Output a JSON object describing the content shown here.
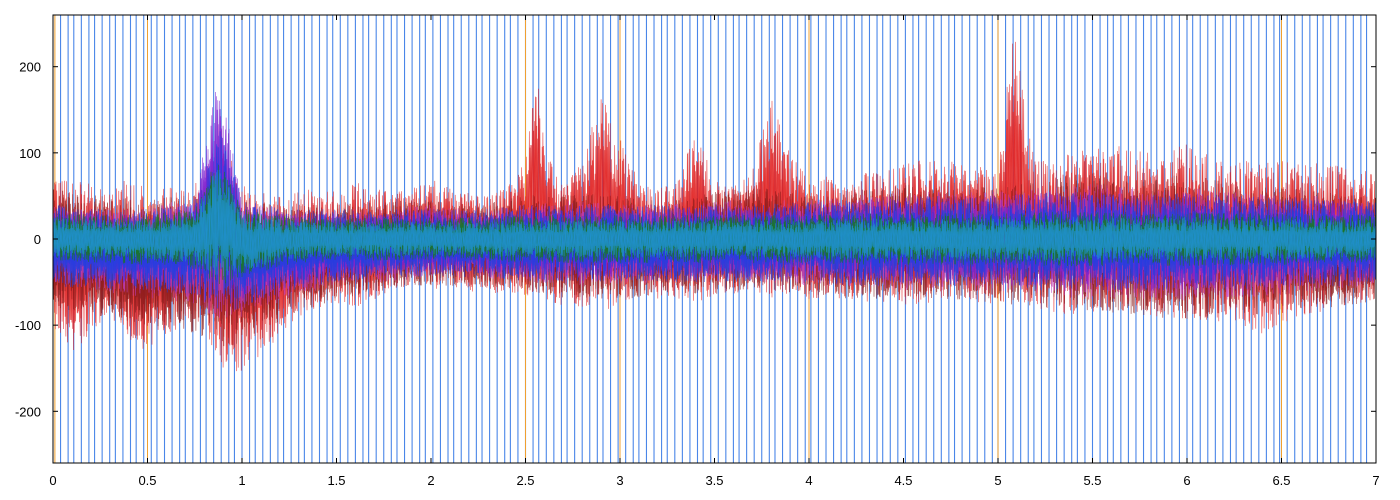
{
  "chart_data": {
    "type": "line",
    "title": "",
    "xlabel": "",
    "ylabel": "",
    "xlim": [
      0,
      7
    ],
    "ylim": [
      -260,
      260
    ],
    "x_ticks": [
      {
        "value": 0,
        "label": "0"
      },
      {
        "value": 0.5,
        "label": "0.5"
      },
      {
        "value": 1,
        "label": "1"
      },
      {
        "value": 1.5,
        "label": "1.5"
      },
      {
        "value": 2,
        "label": "2"
      },
      {
        "value": 2.5,
        "label": "2.5"
      },
      {
        "value": 3,
        "label": "3"
      },
      {
        "value": 3.5,
        "label": "3.5"
      },
      {
        "value": 4,
        "label": "4"
      },
      {
        "value": 4.5,
        "label": "4.5"
      },
      {
        "value": 5,
        "label": "5"
      },
      {
        "value": 5.5,
        "label": "5.5"
      },
      {
        "value": 6,
        "label": "6"
      },
      {
        "value": 6.5,
        "label": "6.5"
      },
      {
        "value": 7,
        "label": "7"
      }
    ],
    "y_ticks": [
      {
        "value": 200,
        "label": "200"
      },
      {
        "value": 100,
        "label": "100"
      },
      {
        "value": 0,
        "label": "0"
      },
      {
        "value": -100,
        "label": "-100"
      },
      {
        "value": -200,
        "label": "-200"
      }
    ],
    "grid": false,
    "legend": "none",
    "event_markers": {
      "blue": [
        0.04,
        0.08,
        0.11,
        0.15,
        0.19,
        0.22,
        0.26,
        0.3,
        0.33,
        0.37,
        0.41,
        0.44,
        0.48,
        0.52,
        0.55,
        0.59,
        0.63,
        0.67,
        0.7,
        0.74,
        0.78,
        0.81,
        0.85,
        0.89,
        0.93,
        0.96,
        1.0,
        1.04,
        1.07,
        1.11,
        1.15,
        1.19,
        1.22,
        1.26,
        1.3,
        1.33,
        1.37,
        1.41,
        1.45,
        1.48,
        1.52,
        1.56,
        1.6,
        1.64,
        1.67,
        1.71,
        1.75,
        1.79,
        1.82,
        1.86,
        1.9,
        1.94,
        1.97,
        2.01,
        2.05,
        2.09,
        2.12,
        2.16,
        2.2,
        2.24,
        2.27,
        2.31,
        2.35,
        2.39,
        2.42,
        2.46,
        2.5,
        2.54,
        2.57,
        2.61,
        2.65,
        2.69,
        2.72,
        2.76,
        2.8,
        2.84,
        2.88,
        2.91,
        2.95,
        2.99,
        3.03,
        3.07,
        3.1,
        3.14,
        3.18,
        3.22,
        3.25,
        3.29,
        3.33,
        3.37,
        3.41,
        3.44,
        3.48,
        3.52,
        3.56,
        3.6,
        3.63,
        3.67,
        3.71,
        3.75,
        3.79,
        3.82,
        3.86,
        3.9,
        3.94,
        3.98,
        4.01,
        4.05,
        4.09,
        4.13,
        4.17,
        4.2,
        4.24,
        4.28,
        4.32,
        4.36,
        4.39,
        4.43,
        4.47,
        4.51,
        4.55,
        4.58,
        4.62,
        4.66,
        4.7,
        4.74,
        4.77,
        4.81,
        4.85,
        4.89,
        4.93,
        4.97,
        5.0,
        5.04,
        5.08,
        5.12,
        5.16,
        5.19,
        5.23,
        5.27,
        5.31,
        5.35,
        5.39,
        5.42,
        5.46,
        5.5,
        5.54,
        5.58,
        5.61,
        5.65,
        5.69,
        5.73,
        5.77,
        5.81,
        5.84,
        5.88,
        5.92,
        5.96,
        6.0,
        6.03,
        6.07,
        6.11,
        6.15,
        6.19,
        6.23,
        6.26,
        6.3,
        6.34,
        6.38,
        6.42,
        6.46,
        6.49,
        6.53,
        6.57,
        6.61,
        6.65,
        6.69,
        6.72,
        6.76,
        6.8,
        6.84,
        6.88,
        6.92,
        6.95
      ],
      "orange": [
        0.01,
        0.5,
        2.5,
        3.0,
        4.0,
        5.0,
        6.5,
        7.0
      ]
    },
    "series": [
      {
        "color": "#e02020",
        "x": [
          0,
          0.1,
          0.2,
          0.3,
          0.4,
          0.5,
          0.6,
          0.7,
          0.8,
          0.9,
          1.0,
          1.1,
          1.2,
          1.3,
          1.4,
          1.5,
          1.6,
          1.7,
          1.8,
          1.9,
          2.0,
          2.1,
          2.2,
          2.3,
          2.4,
          2.5,
          2.55,
          2.6,
          2.7,
          2.8,
          2.9,
          3.0,
          3.1,
          3.2,
          3.3,
          3.4,
          3.5,
          3.6,
          3.7,
          3.8,
          3.9,
          4.0,
          4.2,
          4.4,
          4.6,
          4.8,
          5.0,
          5.08,
          5.2,
          5.4,
          5.6,
          5.8,
          6.0,
          6.2,
          6.4,
          6.6,
          6.8,
          7.0
        ],
        "y_max": [
          90,
          70,
          65,
          60,
          70,
          60,
          60,
          60,
          70,
          120,
          70,
          55,
          50,
          55,
          60,
          55,
          70,
          60,
          55,
          60,
          70,
          60,
          55,
          50,
          60,
          90,
          220,
          110,
          60,
          90,
          170,
          120,
          70,
          60,
          65,
          130,
          70,
          60,
          80,
          165,
          100,
          70,
          75,
          80,
          95,
          90,
          80,
          250,
          90,
          100,
          110,
          100,
          110,
          90,
          95,
          90,
          85,
          80
        ],
        "y_min": [
          -100,
          -140,
          -110,
          -90,
          -120,
          -130,
          -120,
          -90,
          -110,
          -150,
          -160,
          -140,
          -110,
          -90,
          -80,
          -75,
          -80,
          -70,
          -60,
          -55,
          -60,
          -55,
          -60,
          -65,
          -60,
          -70,
          -60,
          -70,
          -80,
          -85,
          -90,
          -80,
          -70,
          -70,
          -70,
          -75,
          -70,
          -65,
          -60,
          -70,
          -65,
          -70,
          -70,
          -80,
          -75,
          -70,
          -80,
          -70,
          -80,
          -90,
          -85,
          -90,
          -100,
          -95,
          -110,
          -90,
          -80,
          -70
        ]
      },
      {
        "color": "#8a1c1c",
        "x": [
          0,
          0.25,
          0.5,
          0.75,
          0.9,
          1.0,
          1.25,
          1.5,
          1.75,
          2.0,
          2.25,
          2.5,
          2.75,
          3.0,
          3.25,
          3.5,
          3.75,
          4.0,
          4.25,
          4.5,
          4.75,
          5.0,
          5.25,
          5.5,
          5.75,
          6.0,
          6.25,
          6.5,
          6.75,
          7.0
        ],
        "y_max": [
          60,
          50,
          45,
          55,
          80,
          45,
          40,
          40,
          45,
          45,
          40,
          50,
          55,
          50,
          45,
          55,
          60,
          50,
          55,
          65,
          60,
          60,
          70,
          80,
          70,
          75,
          65,
          60,
          55,
          50
        ],
        "y_min": [
          -80,
          -90,
          -100,
          -110,
          -130,
          -120,
          -90,
          -70,
          -60,
          -55,
          -55,
          -60,
          -70,
          -70,
          -65,
          -65,
          -60,
          -65,
          -70,
          -70,
          -70,
          -75,
          -80,
          -85,
          -90,
          -95,
          -90,
          -85,
          -80,
          -75
        ]
      },
      {
        "color": "#c040c0",
        "x": [
          0,
          0.25,
          0.5,
          0.75,
          0.88,
          1.0,
          1.25,
          1.5,
          1.75,
          2.0,
          2.25,
          2.5,
          2.75,
          3.0,
          3.25,
          3.5,
          3.75,
          4.0,
          4.25,
          4.5,
          4.75,
          5.0,
          5.25,
          5.5,
          5.75,
          6.0,
          6.25,
          6.5,
          6.75,
          7.0
        ],
        "y_max": [
          40,
          35,
          35,
          50,
          150,
          45,
          35,
          35,
          35,
          40,
          35,
          40,
          45,
          40,
          40,
          45,
          45,
          45,
          50,
          55,
          55,
          55,
          60,
          65,
          60,
          60,
          55,
          50,
          50,
          45
        ],
        "y_min": [
          -50,
          -60,
          -70,
          -75,
          -100,
          -90,
          -70,
          -55,
          -50,
          -45,
          -45,
          -50,
          -55,
          -55,
          -50,
          -50,
          -50,
          -55,
          -55,
          -60,
          -60,
          -60,
          -65,
          -70,
          -70,
          -75,
          -70,
          -65,
          -60,
          -55
        ]
      },
      {
        "color": "#7a20d0",
        "x": [
          0,
          0.25,
          0.5,
          0.75,
          0.88,
          1.0,
          1.25,
          1.5,
          1.75,
          2.0,
          2.25,
          2.5,
          2.75,
          3.0,
          3.25,
          3.5,
          3.75,
          4.0,
          4.25,
          4.5,
          4.75,
          5.0,
          5.25,
          5.5,
          5.75,
          6.0,
          6.25,
          6.5,
          6.75,
          7.0
        ],
        "y_max": [
          35,
          30,
          30,
          45,
          200,
          40,
          30,
          30,
          30,
          35,
          30,
          35,
          40,
          35,
          35,
          40,
          40,
          40,
          45,
          50,
          50,
          50,
          55,
          55,
          50,
          55,
          50,
          45,
          45,
          40
        ],
        "y_min": [
          -40,
          -50,
          -55,
          -60,
          -80,
          -70,
          -55,
          -45,
          -40,
          -40,
          -40,
          -45,
          -45,
          -45,
          -45,
          -45,
          -45,
          -45,
          -50,
          -50,
          -50,
          -55,
          -55,
          -60,
          -60,
          -60,
          -55,
          -55,
          -50,
          -50
        ]
      },
      {
        "color": "#2040e0",
        "x": [
          0,
          0.25,
          0.5,
          0.75,
          0.88,
          1.0,
          1.25,
          1.5,
          1.75,
          2.0,
          2.25,
          2.5,
          2.75,
          3.0,
          3.25,
          3.5,
          3.75,
          4.0,
          4.25,
          4.5,
          4.75,
          5.0,
          5.25,
          5.5,
          5.75,
          6.0,
          6.25,
          6.5,
          6.75,
          7.0
        ],
        "y_max": [
          40,
          35,
          35,
          45,
          130,
          45,
          35,
          35,
          35,
          35,
          35,
          40,
          40,
          40,
          40,
          40,
          40,
          45,
          45,
          50,
          50,
          50,
          55,
          55,
          50,
          55,
          50,
          50,
          45,
          45
        ],
        "y_min": [
          -55,
          -60,
          -60,
          -65,
          -90,
          -80,
          -60,
          -50,
          -45,
          -45,
          -45,
          -50,
          -50,
          -50,
          -50,
          -50,
          -50,
          -50,
          -55,
          -55,
          -55,
          -55,
          -60,
          -60,
          -60,
          -60,
          -60,
          -55,
          -55,
          -55
        ]
      },
      {
        "color": "#1a7a1a",
        "x": [
          0,
          0.25,
          0.5,
          0.75,
          0.88,
          1.0,
          1.25,
          1.5,
          1.75,
          2.0,
          2.25,
          2.5,
          2.75,
          3.0,
          3.25,
          3.5,
          3.75,
          4.0,
          4.25,
          4.5,
          4.75,
          5.0,
          5.25,
          5.5,
          5.75,
          6.0,
          6.25,
          6.5,
          6.75,
          7.0
        ],
        "y_max": [
          30,
          28,
          28,
          35,
          100,
          35,
          28,
          25,
          25,
          25,
          25,
          28,
          28,
          28,
          28,
          28,
          28,
          28,
          30,
          30,
          30,
          30,
          32,
          32,
          30,
          32,
          30,
          30,
          28,
          28
        ],
        "y_min": [
          -25,
          -28,
          -30,
          -35,
          -55,
          -45,
          -30,
          -25,
          -25,
          -25,
          -25,
          -28,
          -28,
          -28,
          -28,
          -28,
          -28,
          -28,
          -30,
          -30,
          -30,
          -30,
          -32,
          -32,
          -30,
          -32,
          -30,
          -30,
          -28,
          -28
        ]
      },
      {
        "color": "#2090d0",
        "x": [
          0,
          0.25,
          0.5,
          0.75,
          0.88,
          1.0,
          1.25,
          1.5,
          1.75,
          2.0,
          2.25,
          2.5,
          2.75,
          3.0,
          3.25,
          3.5,
          3.75,
          4.0,
          4.25,
          4.5,
          4.75,
          5.0,
          5.25,
          5.5,
          5.75,
          6.0,
          6.25,
          6.5,
          6.75,
          7.0
        ],
        "y_max": [
          25,
          22,
          22,
          30,
          90,
          30,
          22,
          20,
          20,
          20,
          20,
          22,
          22,
          22,
          22,
          22,
          22,
          22,
          24,
          24,
          24,
          24,
          26,
          26,
          24,
          26,
          24,
          24,
          22,
          22
        ],
        "y_min": [
          -20,
          -22,
          -24,
          -28,
          -45,
          -38,
          -24,
          -20,
          -20,
          -20,
          -20,
          -22,
          -22,
          -22,
          -22,
          -22,
          -22,
          -22,
          -24,
          -24,
          -24,
          -24,
          -26,
          -26,
          -24,
          -26,
          -24,
          -24,
          -22,
          -22
        ]
      }
    ]
  }
}
